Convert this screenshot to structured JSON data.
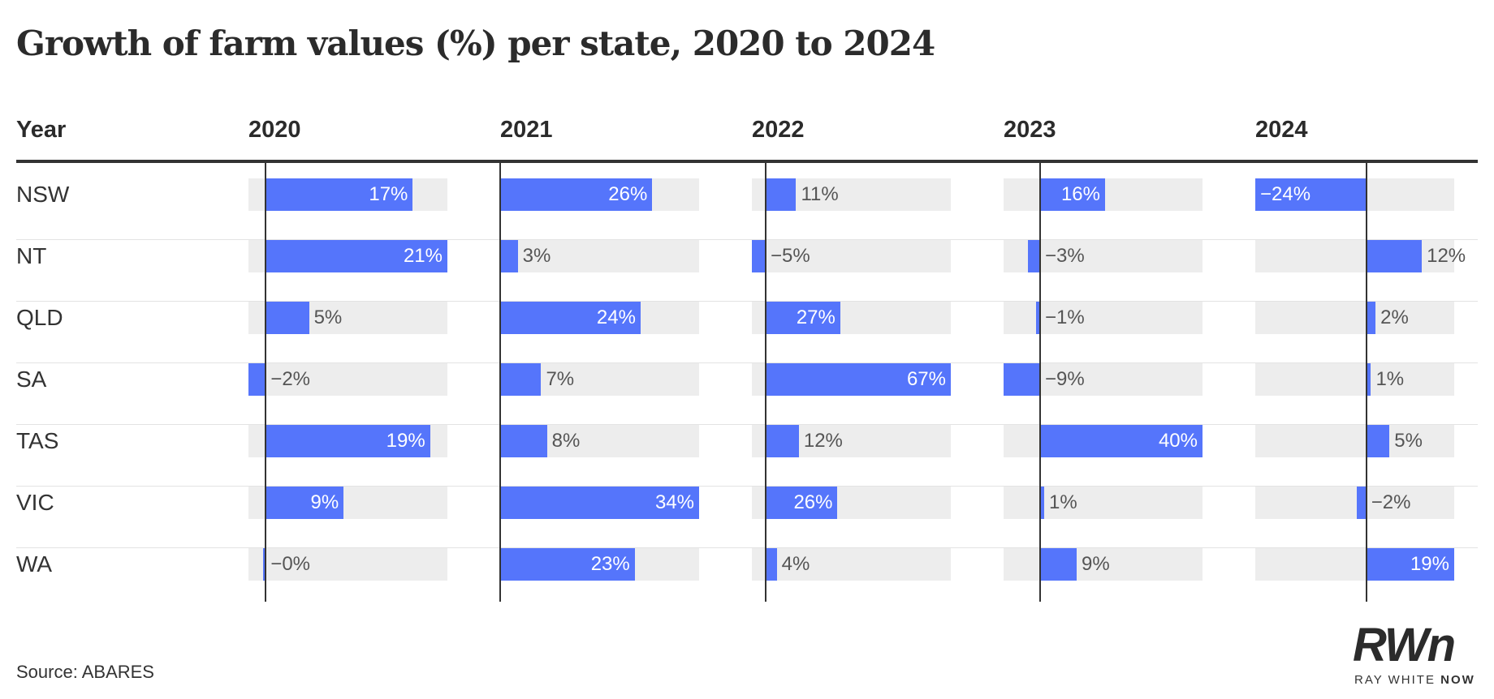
{
  "title": "Growth of farm values (%) per state, 2020 to 2024",
  "source": "Source: ABARES",
  "logo": {
    "mark": "RWn",
    "tag_left": "RAY WHITE ",
    "tag_bold": "NOW"
  },
  "colors": {
    "bar": "#5575fb",
    "track": "#ededed",
    "axis": "#333333",
    "text": "#333333"
  },
  "chart_data": {
    "type": "table",
    "row_header": "Year",
    "columns": [
      {
        "year": "2020",
        "min": -2,
        "max": 21
      },
      {
        "year": "2021",
        "min": 0,
        "max": 34
      },
      {
        "year": "2022",
        "min": -5,
        "max": 67
      },
      {
        "year": "2023",
        "min": -9,
        "max": 40
      },
      {
        "year": "2024",
        "min": -24,
        "max": 19
      }
    ],
    "rows": [
      {
        "state": "NSW",
        "values": [
          17,
          26,
          11,
          16,
          -24
        ],
        "labels": [
          "17%",
          "26%",
          "11%",
          "16%",
          "−24%"
        ]
      },
      {
        "state": "NT",
        "values": [
          21,
          3,
          -5,
          -3,
          12
        ],
        "labels": [
          "21%",
          "3%",
          "−5%",
          "−3%",
          "12%"
        ]
      },
      {
        "state": "QLD",
        "values": [
          5,
          24,
          27,
          -1,
          2
        ],
        "labels": [
          "5%",
          "24%",
          "27%",
          "−1%",
          "2%"
        ]
      },
      {
        "state": "SA",
        "values": [
          -2,
          7,
          67,
          -9,
          1
        ],
        "labels": [
          "−2%",
          "7%",
          "67%",
          "−9%",
          "1%"
        ]
      },
      {
        "state": "TAS",
        "values": [
          19,
          8,
          12,
          40,
          5
        ],
        "labels": [
          "19%",
          "8%",
          "12%",
          "40%",
          "5%"
        ]
      },
      {
        "state": "VIC",
        "values": [
          9,
          34,
          26,
          1,
          -2
        ],
        "labels": [
          "9%",
          "34%",
          "26%",
          "1%",
          "−2%"
        ]
      },
      {
        "state": "WA",
        "values": [
          -0.3,
          23,
          4,
          9,
          19
        ],
        "labels": [
          "−0%",
          "23%",
          "4%",
          "9%",
          "19%"
        ]
      }
    ]
  }
}
